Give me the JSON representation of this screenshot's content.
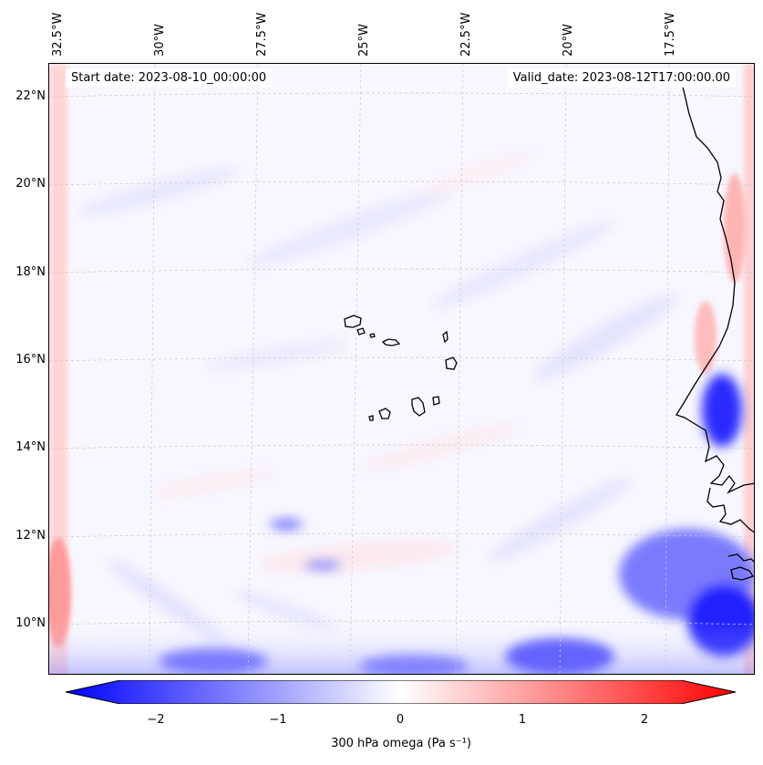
{
  "map": {
    "start_label": "Start date: 2023-08-10_00:00:00",
    "valid_label": "Valid_date: 2023-08-12T17:00:00.00",
    "lon_labels": [
      "32.5°W",
      "30°W",
      "27.5°W",
      "25°W",
      "22.5°W",
      "20°W",
      "17.5°W"
    ],
    "lat_labels": [
      "22°N",
      "20°N",
      "18°N",
      "16°N",
      "14°N",
      "12°N",
      "10°N"
    ],
    "coastline_color": "#000000",
    "field_colors": {
      "negative": "#0000ff",
      "zero": "#ffffff",
      "positive": "#ff0000"
    }
  },
  "colorbar": {
    "label": "300 hPa omega (Pa s⁻¹)",
    "ticks": [
      "−2",
      "−1",
      "0",
      "1",
      "2"
    ],
    "range": [
      -2.75,
      2.75
    ],
    "extend": "both"
  }
}
